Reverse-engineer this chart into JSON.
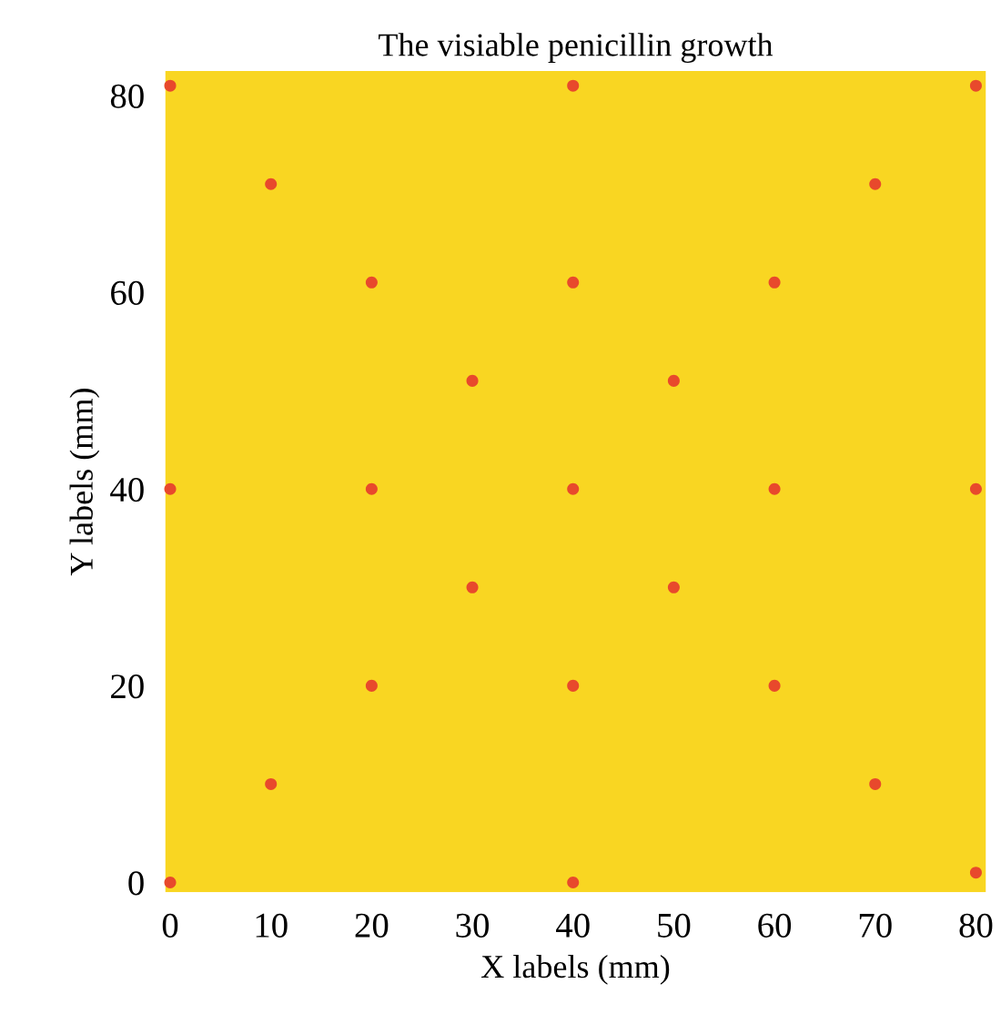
{
  "chart_data": {
    "type": "scatter",
    "title": "The visiable penicillin growth",
    "xlabel": "X labels (mm)",
    "ylabel": "Y labels (mm)",
    "x": [
      0,
      40,
      80,
      10,
      70,
      20,
      40,
      60,
      30,
      50,
      0,
      20,
      40,
      60,
      80,
      30,
      50,
      20,
      40,
      60,
      10,
      70,
      0,
      40,
      80
    ],
    "series": [
      {
        "color": "#e8492c",
        "values": [
          81,
          81,
          81,
          71,
          71,
          61,
          61,
          61,
          51,
          51,
          40,
          40,
          40,
          40,
          40,
          30,
          30,
          20,
          20,
          20,
          10,
          10,
          0,
          0,
          1
        ]
      }
    ],
    "bands": [
      {
        "axis": "x",
        "from": -0.5,
        "to": 81,
        "color": "#f9d622"
      }
    ],
    "xlim": [
      -0.5,
      81
    ],
    "ylim": [
      -1,
      82.5
    ],
    "xticks": [
      0,
      10,
      20,
      30,
      40,
      50,
      60,
      70,
      80
    ],
    "yticks": [
      0,
      20,
      40,
      60,
      80
    ],
    "marker": "circle",
    "grid": false,
    "legend": false
  }
}
